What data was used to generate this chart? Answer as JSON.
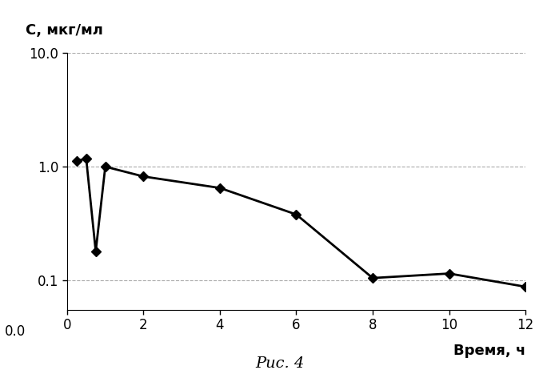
{
  "x": [
    0.25,
    0.5,
    0.75,
    1.0,
    2.0,
    4.0,
    6.0,
    8.0,
    10.0,
    12.0
  ],
  "y": [
    1.12,
    1.18,
    0.18,
    1.0,
    0.82,
    0.65,
    0.38,
    0.105,
    0.115,
    0.088
  ],
  "xlabel": "Время, ч",
  "ylabel": "С, мкг/мл",
  "caption": "Рис. 4",
  "xlim": [
    0,
    12
  ],
  "ylim_top": 10.0,
  "xticks": [
    0,
    2,
    4,
    6,
    8,
    10,
    12
  ],
  "ytick_vals": [
    0.1,
    1.0,
    10.0
  ],
  "ytick_labels": [
    "0.1",
    "1.0",
    "10.0"
  ],
  "grid_color": "#aaaaaa",
  "line_color": "#000000",
  "marker_color": "#000000",
  "bg_color": "#ffffff",
  "label_fontsize": 13,
  "caption_fontsize": 14,
  "tick_fontsize": 12
}
